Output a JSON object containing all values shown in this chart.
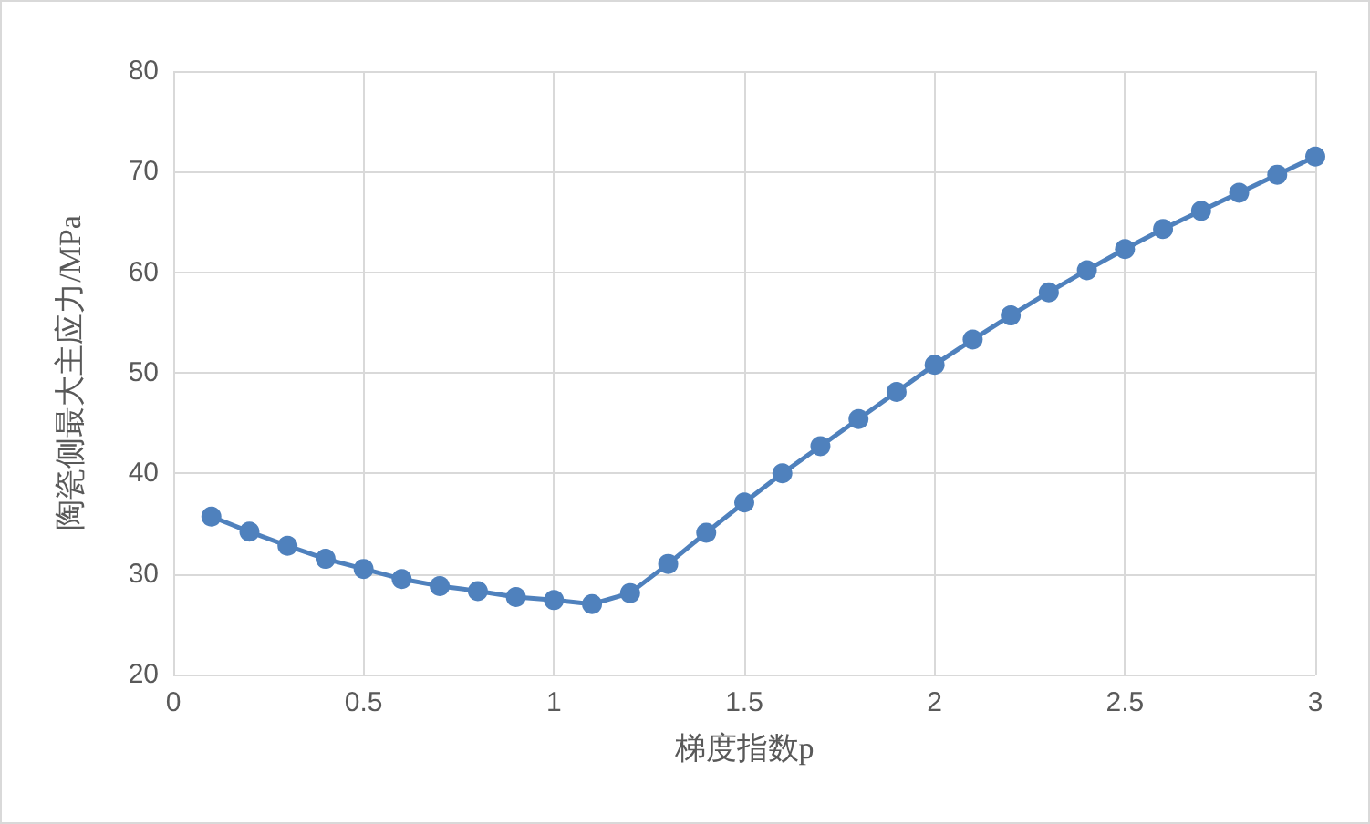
{
  "chart_data": {
    "type": "line",
    "xlabel": "梯度指数p",
    "ylabel": "陶瓷侧最大主应力/MPa",
    "x": [
      0.1,
      0.2,
      0.3,
      0.4,
      0.5,
      0.6,
      0.7,
      0.8,
      0.9,
      1.0,
      1.1,
      1.2,
      1.3,
      1.4,
      1.5,
      1.6,
      1.7,
      1.8,
      1.9,
      2.0,
      2.1,
      2.2,
      2.3,
      2.4,
      2.5,
      2.6,
      2.7,
      2.8,
      2.9,
      3.0
    ],
    "series": [
      {
        "color": "#4f81bd",
        "values": [
          35.7,
          34.2,
          32.8,
          31.5,
          30.5,
          29.5,
          28.8,
          28.3,
          27.7,
          27.4,
          27.0,
          28.1,
          31.0,
          34.1,
          37.1,
          40.0,
          42.7,
          45.4,
          48.1,
          50.8,
          53.3,
          55.7,
          58.0,
          60.2,
          62.3,
          64.3,
          66.1,
          67.9,
          69.7,
          71.5
        ]
      }
    ],
    "xlim": [
      0,
      3
    ],
    "xticks": [
      0,
      0.5,
      1,
      1.5,
      2,
      2.5,
      3
    ],
    "ylim": [
      20,
      80
    ],
    "yticks": [
      20,
      30,
      40,
      50,
      60,
      70,
      80
    ],
    "grid": true,
    "marker": "circle",
    "line_style": "solid"
  }
}
